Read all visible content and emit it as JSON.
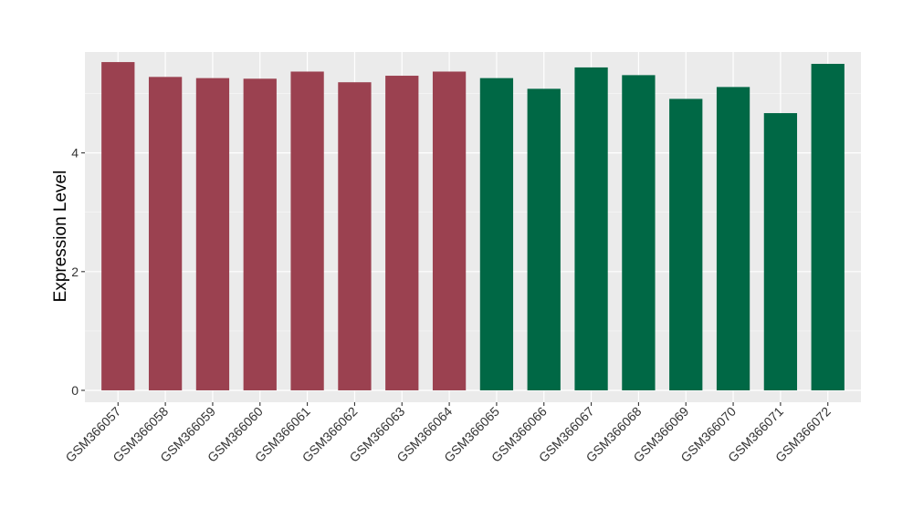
{
  "chart_data": {
    "type": "bar",
    "title": "",
    "xlabel": "",
    "ylabel": "Expression Level",
    "ylim": [
      -0.2,
      5.7
    ],
    "yticks": [
      0,
      2,
      4
    ],
    "grid": true,
    "legend": "none",
    "categories": [
      "GSM366057",
      "GSM366058",
      "GSM366059",
      "GSM366060",
      "GSM366061",
      "GSM366062",
      "GSM366063",
      "GSM366064",
      "GSM366065",
      "GSM366066",
      "GSM366067",
      "GSM366068",
      "GSM366069",
      "GSM366070",
      "GSM366071",
      "GSM366072"
    ],
    "values": [
      5.53,
      5.28,
      5.26,
      5.25,
      5.37,
      5.19,
      5.3,
      5.37,
      5.26,
      5.08,
      5.44,
      5.31,
      4.91,
      5.11,
      4.67,
      5.5
    ],
    "bar_colors": [
      "#9b4150",
      "#9b4150",
      "#9b4150",
      "#9b4150",
      "#9b4150",
      "#9b4150",
      "#9b4150",
      "#9b4150",
      "#006845",
      "#006845",
      "#006845",
      "#006845",
      "#006845",
      "#006845",
      "#006845",
      "#006845"
    ]
  },
  "colors": {
    "panel_background": "#ebebeb",
    "grid_major": "#ffffff",
    "group_a": "#9b4150",
    "group_b": "#006845"
  }
}
